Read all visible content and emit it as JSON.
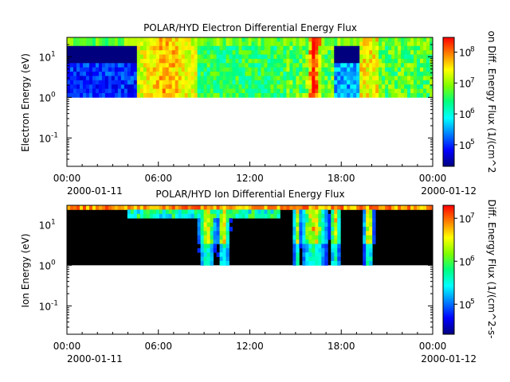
{
  "colormap": [
    "#00007f",
    "#0000ff",
    "#007fff",
    "#00ffff",
    "#00ff7f",
    "#7fff00",
    "#ffff00",
    "#ff7f00",
    "#ff0000"
  ],
  "chart_data": [
    {
      "type": "heatmap",
      "title": "POLAR/HYD  Electron Differential Energy Flux",
      "ylabel": "Electron Energy (eV)",
      "yscale": "log",
      "ylim": [
        0.02,
        30
      ],
      "ytick_values": [
        0.1,
        1,
        10
      ],
      "ytick_labels": [
        "10",
        "10",
        "10"
      ],
      "ytick_exponents": [
        "-1",
        "0",
        "1"
      ],
      "xlim_hours": [
        0,
        24
      ],
      "xticks": [
        "00:00",
        "06:00",
        "12:00",
        "18:00",
        "00:00"
      ],
      "xdate_start": "2000-01-11",
      "xdate_end": "2000-01-12",
      "data_energy_range_eV": [
        1,
        30
      ],
      "colorbar_label": "on Diff. Energy Flux (1/(cm^2",
      "colorbar_scale": "log",
      "colorbar_range": [
        20000,
        300000000
      ],
      "colorbar_tick_values": [
        100000,
        1000000,
        10000000,
        100000000
      ],
      "colorbar_tick_labels": [
        "10",
        "10",
        "10",
        "10"
      ],
      "colorbar_tick_exponents": [
        "5",
        "6",
        "7",
        "8"
      ]
    },
    {
      "type": "heatmap",
      "title": "POLAR/HYD  Ion Differential Energy Flux",
      "ylabel": "Ion Energy (eV)",
      "yscale": "log",
      "ylim": [
        0.02,
        30
      ],
      "ytick_values": [
        0.1,
        1,
        10
      ],
      "ytick_labels": [
        "10",
        "10",
        "10"
      ],
      "ytick_exponents": [
        "-1",
        "0",
        "1"
      ],
      "xlim_hours": [
        0,
        24
      ],
      "xticks": [
        "00:00",
        "06:00",
        "12:00",
        "18:00",
        "00:00"
      ],
      "xdate_start": "2000-01-11",
      "xdate_end": "2000-01-12",
      "data_energy_range_eV": [
        1,
        30
      ],
      "colorbar_label": "Diff. Energy Flux (1/(cm^2-s-",
      "colorbar_scale": "log",
      "colorbar_range": [
        20000,
        20000000
      ],
      "colorbar_tick_values": [
        100000,
        1000000,
        10000000
      ],
      "colorbar_tick_labels": [
        "10",
        "10",
        "10"
      ],
      "colorbar_tick_exponents": [
        "5",
        "6",
        "7"
      ]
    }
  ]
}
